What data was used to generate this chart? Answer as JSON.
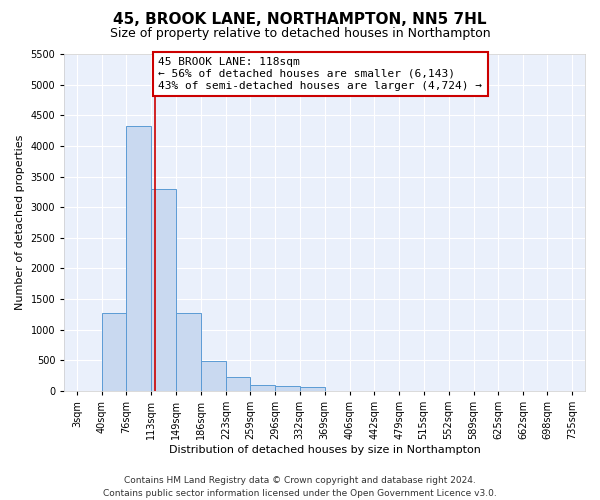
{
  "title": "45, BROOK LANE, NORTHAMPTON, NN5 7HL",
  "subtitle": "Size of property relative to detached houses in Northampton",
  "xlabel": "Distribution of detached houses by size in Northampton",
  "ylabel": "Number of detached properties",
  "footer_line1": "Contains HM Land Registry data © Crown copyright and database right 2024.",
  "footer_line2": "Contains public sector information licensed under the Open Government Licence v3.0.",
  "annotation_line1": "45 BROOK LANE: 118sqm",
  "annotation_line2": "← 56% of detached houses are smaller (6,143)",
  "annotation_line3": "43% of semi-detached houses are larger (4,724) →",
  "bar_edges": [
    3,
    40,
    76,
    113,
    149,
    186,
    223,
    259,
    296,
    332,
    369,
    406,
    442,
    479,
    515,
    552,
    589,
    625,
    662,
    698,
    735
  ],
  "bar_heights": [
    0,
    1270,
    4330,
    3300,
    1280,
    490,
    220,
    100,
    75,
    60,
    0,
    0,
    0,
    0,
    0,
    0,
    0,
    0,
    0,
    0
  ],
  "bar_color": "#c9d9f0",
  "bar_edgecolor": "#5b9bd5",
  "red_line_x": 118,
  "ylim": [
    0,
    5500
  ],
  "yticks": [
    0,
    500,
    1000,
    1500,
    2000,
    2500,
    3000,
    3500,
    4000,
    4500,
    5000,
    5500
  ],
  "background_color": "#eaf0fb",
  "grid_color": "#ffffff",
  "annotation_box_edgecolor": "#cc0000",
  "annotation_box_facecolor": "#ffffff",
  "red_line_color": "#cc0000",
  "title_fontsize": 11,
  "subtitle_fontsize": 9,
  "axis_label_fontsize": 8,
  "tick_fontsize": 7,
  "annotation_fontsize": 8,
  "footer_fontsize": 6.5
}
